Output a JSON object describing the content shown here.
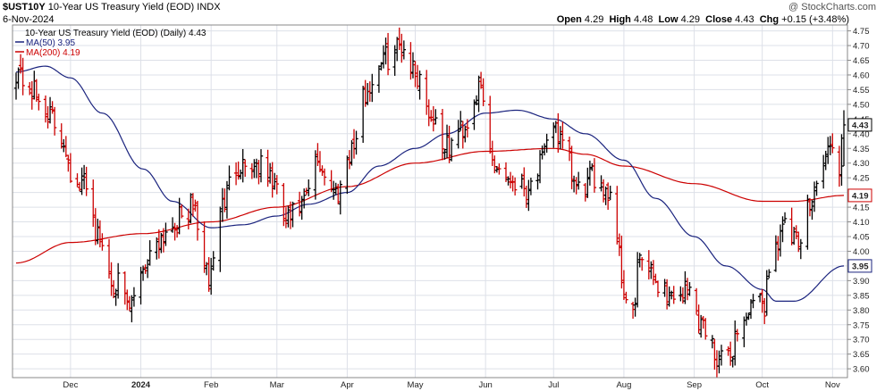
{
  "header": {
    "symbol": "$UST10Y",
    "name": "10-Year US Treasury Yield (EOD)",
    "exchange": "INDX",
    "date": "6-Nov-2024",
    "watermark": "@ StockCharts.com",
    "open_label": "Open",
    "open": "4.29",
    "high_label": "High",
    "high": "4.48",
    "low_label": "Low",
    "low": "4.29",
    "close_label": "Close",
    "close": "4.43",
    "chg_label": "Chg",
    "chg": "+0.15 (+3.48%)"
  },
  "legend": {
    "main": "10-Year US Treasury Yield (EOD) (Daily) 4.43",
    "ma50": "MA(50) 3.95",
    "ma200": "MA(200) 4.19"
  },
  "colors": {
    "up": "#000000",
    "down": "#cc0000",
    "ma50": "#1a237e",
    "ma200": "#cc0000",
    "grid": "#dde0e8",
    "border": "#888888",
    "bg": "#ffffff"
  },
  "chart_data": {
    "type": "line",
    "ylim": [
      3.57,
      4.77
    ],
    "y_ticks": [
      "3.60",
      "3.65",
      "3.70",
      "3.75",
      "3.80",
      "3.85",
      "3.90",
      "3.95",
      "4.00",
      "4.05",
      "4.10",
      "4.15",
      "4.20",
      "4.25",
      "4.30",
      "4.35",
      "4.40",
      "4.45",
      "4.50",
      "4.55",
      "4.60",
      "4.65",
      "4.70",
      "4.75"
    ],
    "x_labels": [
      "Dec",
      "2024",
      "Feb",
      "Mar",
      "Apr",
      "May",
      "Jun",
      "Jul",
      "Aug",
      "Sep",
      "Oct",
      "Nov"
    ],
    "price_anchors": {
      "x": [
        "2023-11-07",
        "2023-11-13",
        "2023-11-20",
        "2023-11-27",
        "2023-12-04",
        "2023-12-08",
        "2023-12-13",
        "2023-12-20",
        "2023-12-27",
        "2024-01-02",
        "2024-01-09",
        "2024-01-16",
        "2024-01-24",
        "2024-01-31",
        "2024-02-05",
        "2024-02-13",
        "2024-02-20",
        "2024-02-27",
        "2024-03-05",
        "2024-03-12",
        "2024-03-19",
        "2024-03-27",
        "2024-04-03",
        "2024-04-10",
        "2024-04-16",
        "2024-04-25",
        "2024-05-02",
        "2024-05-09",
        "2024-05-15",
        "2024-05-22",
        "2024-05-29",
        "2024-06-05",
        "2024-06-12",
        "2024-06-19",
        "2024-06-26",
        "2024-07-01",
        "2024-07-05",
        "2024-07-12",
        "2024-07-19",
        "2024-07-26",
        "2024-08-02",
        "2024-08-05",
        "2024-08-08",
        "2024-08-15",
        "2024-08-22",
        "2024-08-29",
        "2024-09-05",
        "2024-09-11",
        "2024-09-16",
        "2024-09-20",
        "2024-09-26",
        "2024-10-02",
        "2024-10-04",
        "2024-10-10",
        "2024-10-17",
        "2024-10-24",
        "2024-10-31",
        "2024-11-04",
        "2024-11-06"
      ],
      "y": [
        4.62,
        4.55,
        4.48,
        4.39,
        4.2,
        4.25,
        4.05,
        3.9,
        3.8,
        3.95,
        4.05,
        4.1,
        4.15,
        3.9,
        4.15,
        4.3,
        4.3,
        4.25,
        4.1,
        4.15,
        4.3,
        4.2,
        4.35,
        4.55,
        4.65,
        4.7,
        4.6,
        4.45,
        4.35,
        4.42,
        4.55,
        4.3,
        4.25,
        4.22,
        4.3,
        4.45,
        4.35,
        4.2,
        4.25,
        4.2,
        3.85,
        3.78,
        3.98,
        3.9,
        3.85,
        3.87,
        3.75,
        3.65,
        3.62,
        3.73,
        3.8,
        3.82,
        3.95,
        4.08,
        4.02,
        4.22,
        4.35,
        4.29,
        4.43
      ]
    },
    "ma50_anchors": {
      "x": [
        "2023-11-07",
        "2023-11-20",
        "2023-12-01",
        "2023-12-15",
        "2024-01-02",
        "2024-01-15",
        "2024-02-01",
        "2024-02-15",
        "2024-03-01",
        "2024-03-15",
        "2024-04-01",
        "2024-04-15",
        "2024-05-01",
        "2024-05-15",
        "2024-06-01",
        "2024-06-15",
        "2024-07-01",
        "2024-07-15",
        "2024-08-01",
        "2024-08-15",
        "2024-09-01",
        "2024-09-15",
        "2024-10-01",
        "2024-10-07",
        "2024-10-15",
        "2024-11-06"
      ],
      "y": [
        4.61,
        4.63,
        4.59,
        4.47,
        4.28,
        4.17,
        4.08,
        4.09,
        4.12,
        4.16,
        4.2,
        4.29,
        4.35,
        4.4,
        4.47,
        4.48,
        4.45,
        4.4,
        4.31,
        4.18,
        4.05,
        3.95,
        3.87,
        3.83,
        3.83,
        3.95
      ]
    },
    "ma200_anchors": {
      "x": [
        "2023-11-07",
        "2023-12-01",
        "2024-01-02",
        "2024-02-01",
        "2024-03-01",
        "2024-04-01",
        "2024-05-01",
        "2024-06-01",
        "2024-07-01",
        "2024-07-15",
        "2024-08-01",
        "2024-09-01",
        "2024-10-01",
        "2024-10-15",
        "2024-11-06"
      ],
      "y": [
        3.96,
        4.03,
        4.06,
        4.1,
        4.15,
        4.22,
        4.3,
        4.34,
        4.35,
        4.33,
        4.29,
        4.23,
        4.17,
        4.17,
        4.19
      ]
    }
  }
}
